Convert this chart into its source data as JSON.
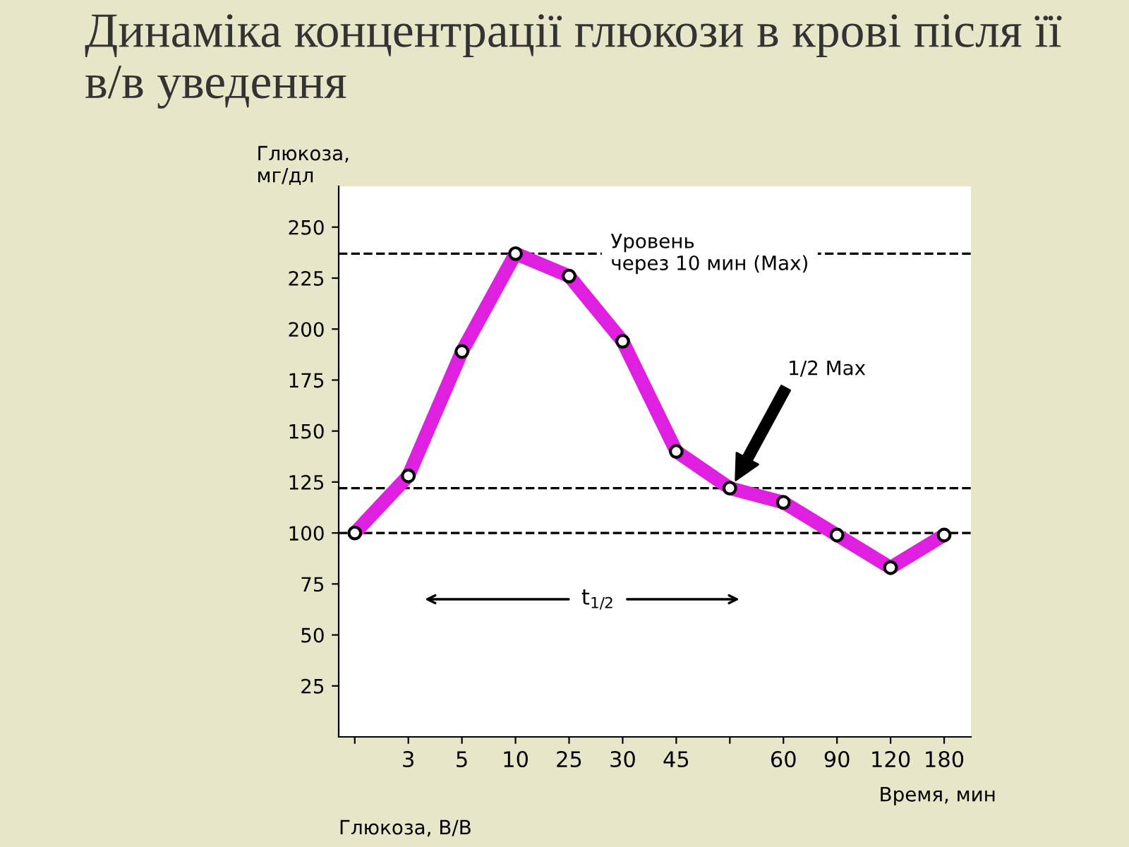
{
  "chart_data": {
    "type": "line",
    "title": "Динаміка концентрації глюкози в крові після її в/в уведення",
    "ylabel": "Глюкоза,\nмг/дл",
    "xlabel": "Время, мин",
    "categories": [
      null,
      "3",
      "5",
      "10",
      "25",
      "30",
      "45",
      null,
      "60",
      "90",
      "120",
      "180"
    ],
    "series": [
      {
        "color": "#e020e0",
        "values": [
          100,
          128,
          189,
          237,
          226,
          194,
          140,
          122,
          115,
          99,
          83,
          99
        ]
      }
    ],
    "ylim": [
      0,
      270
    ],
    "yticks": [
      25,
      50,
      75,
      100,
      125,
      150,
      175,
      200,
      225,
      250
    ],
    "marker": "circle",
    "line_style": "solid",
    "grid": false,
    "legend": false,
    "ref_lines": [
      {
        "axis": "y",
        "value": 237,
        "label": "Уровень\nчерез 10 мин (Max)",
        "line_style": "dashed",
        "color": "#000000"
      },
      {
        "axis": "y",
        "value": 122,
        "line_style": "dashed",
        "color": "#000000"
      },
      {
        "axis": "y",
        "value": 100,
        "line_style": "dashed",
        "color": "#000000"
      }
    ],
    "annotations": [
      "1/2 Max",
      "t$_{1/2}$",
      "Глюкоза, В/В"
    ]
  }
}
